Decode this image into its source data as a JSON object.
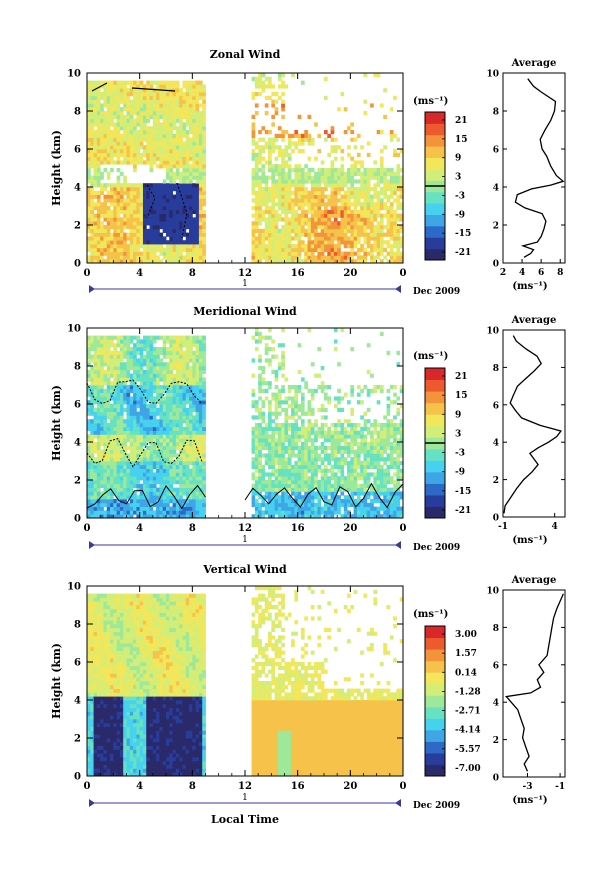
{
  "chart_data": [
    {
      "type": "heatmap",
      "title": "Zonal Wind",
      "xlabel": "",
      "ylabel": "Height (km)",
      "x_ticks": [
        "0",
        "4",
        "8",
        "12",
        "16",
        "20",
        "0"
      ],
      "y_ticks": [
        "0",
        "2",
        "4",
        "6",
        "8",
        "10"
      ],
      "xlim": [
        0,
        24
      ],
      "ylim": [
        0,
        10
      ],
      "date_axis": {
        "label": "1",
        "suffix": "Dec 2009"
      },
      "data_gap_hours": [
        9,
        12.5
      ],
      "colorbar": {
        "unit": "(ms⁻¹)",
        "ticks": [
          "21",
          "15",
          "9",
          "3",
          "-3",
          "-9",
          "-15",
          "-21"
        ],
        "range": [
          -24,
          24
        ],
        "marker": 0
      },
      "contour_level": 0,
      "profile": {
        "title": "Average",
        "xlabel": "(ms⁻¹)",
        "x_ticks": [
          "2",
          "4",
          "6",
          "8"
        ],
        "xlim": [
          2,
          8.5
        ],
        "y_ticks": [
          "0",
          "2",
          "4",
          "6",
          "8",
          "10"
        ],
        "ylim": [
          0,
          10
        ],
        "points": [
          [
            4.2,
            0.3
          ],
          [
            4.9,
            0.5
          ],
          [
            5.2,
            0.7
          ],
          [
            4.1,
            0.9
          ],
          [
            5.6,
            1.1
          ],
          [
            6.0,
            1.4
          ],
          [
            6.3,
            1.8
          ],
          [
            6.5,
            2.2
          ],
          [
            6.1,
            2.6
          ],
          [
            4.3,
            2.9
          ],
          [
            3.3,
            3.2
          ],
          [
            3.5,
            3.6
          ],
          [
            5.0,
            3.9
          ],
          [
            7.0,
            4.1
          ],
          [
            8.3,
            4.3
          ],
          [
            7.6,
            4.6
          ],
          [
            7.0,
            5.1
          ],
          [
            6.6,
            5.6
          ],
          [
            6.1,
            6.0
          ],
          [
            5.9,
            6.5
          ],
          [
            6.4,
            7.0
          ],
          [
            7.0,
            7.5
          ],
          [
            7.4,
            8.0
          ],
          [
            7.5,
            8.5
          ],
          [
            6.0,
            9.0
          ],
          [
            5.2,
            9.3
          ],
          [
            4.6,
            9.7
          ]
        ]
      }
    },
    {
      "type": "heatmap",
      "title": "Meridional Wind",
      "xlabel": "",
      "ylabel": "Height (km)",
      "x_ticks": [
        "0",
        "4",
        "8",
        "12",
        "16",
        "20",
        "0"
      ],
      "y_ticks": [
        "0",
        "2",
        "4",
        "6",
        "8",
        "10"
      ],
      "xlim": [
        0,
        24
      ],
      "ylim": [
        0,
        10
      ],
      "date_axis": {
        "label": "1",
        "suffix": "Dec 2009"
      },
      "data_gap_hours": [
        9,
        12.5
      ],
      "colorbar": {
        "unit": "(ms⁻¹)",
        "ticks": [
          "21",
          "15",
          "9",
          "3",
          "-3",
          "-9",
          "-15",
          "-21"
        ],
        "range": [
          -24,
          24
        ],
        "marker": 0
      },
      "contour_level": 0,
      "profile": {
        "title": "Average",
        "xlabel": "(ms⁻¹)",
        "x_ticks": [
          "-1",
          "4"
        ],
        "xlim": [
          -1,
          5
        ],
        "y_ticks": [
          "0",
          "2",
          "4",
          "6",
          "8",
          "10"
        ],
        "ylim": [
          0,
          10
        ],
        "points": [
          [
            -0.9,
            0.2
          ],
          [
            -0.8,
            0.6
          ],
          [
            -0.3,
            1.0
          ],
          [
            0.3,
            1.5
          ],
          [
            1.0,
            2.0
          ],
          [
            1.8,
            2.4
          ],
          [
            2.4,
            2.8
          ],
          [
            2.0,
            3.1
          ],
          [
            1.6,
            3.4
          ],
          [
            2.4,
            3.7
          ],
          [
            3.4,
            4.0
          ],
          [
            4.2,
            4.3
          ],
          [
            4.6,
            4.6
          ],
          [
            2.6,
            4.9
          ],
          [
            0.8,
            5.3
          ],
          [
            0.2,
            5.7
          ],
          [
            -0.3,
            6.1
          ],
          [
            0.0,
            6.5
          ],
          [
            0.4,
            7.0
          ],
          [
            1.2,
            7.4
          ],
          [
            2.0,
            7.8
          ],
          [
            2.7,
            8.2
          ],
          [
            2.3,
            8.6
          ],
          [
            1.2,
            9.0
          ],
          [
            0.3,
            9.4
          ],
          [
            0.0,
            9.7
          ]
        ]
      }
    },
    {
      "type": "heatmap",
      "title": "Vertical Wind",
      "xlabel": "Local Time",
      "ylabel": "Height (km)",
      "x_ticks": [
        "0",
        "4",
        "8",
        "12",
        "16",
        "20",
        "0"
      ],
      "y_ticks": [
        "0",
        "2",
        "4",
        "6",
        "8",
        "10"
      ],
      "xlim": [
        0,
        24
      ],
      "ylim": [
        0,
        10
      ],
      "date_axis": {
        "label": "1",
        "suffix": "Dec 2009"
      },
      "data_gap_hours": [
        9,
        12.5
      ],
      "colorbar": {
        "unit": "(ms⁻¹)",
        "ticks": [
          "3.00",
          "1.57",
          "0.14",
          "-1.28",
          "-2.71",
          "-4.14",
          "-5.57",
          "-7.00"
        ],
        "range": [
          -7.7,
          3.7
        ]
      },
      "profile": {
        "title": "Average",
        "xlabel": "(ms⁻¹)",
        "x_ticks": [
          "-3",
          "-1"
        ],
        "xlim": [
          -4.5,
          -0.7
        ],
        "y_ticks": [
          "0",
          "2",
          "4",
          "6",
          "8",
          "10"
        ],
        "ylim": [
          0,
          10
        ],
        "points": [
          [
            -3.0,
            0.3
          ],
          [
            -3.2,
            0.7
          ],
          [
            -2.9,
            1.1
          ],
          [
            -3.1,
            1.6
          ],
          [
            -3.3,
            2.1
          ],
          [
            -3.2,
            2.6
          ],
          [
            -3.4,
            3.1
          ],
          [
            -3.6,
            3.6
          ],
          [
            -4.0,
            4.0
          ],
          [
            -4.3,
            4.3
          ],
          [
            -2.8,
            4.5
          ],
          [
            -2.2,
            4.8
          ],
          [
            -2.4,
            5.2
          ],
          [
            -2.0,
            5.6
          ],
          [
            -2.3,
            6.0
          ],
          [
            -1.8,
            6.5
          ],
          [
            -1.7,
            7.0
          ],
          [
            -1.6,
            7.5
          ],
          [
            -1.5,
            8.0
          ],
          [
            -1.4,
            8.5
          ],
          [
            -1.2,
            9.0
          ],
          [
            -1.0,
            9.4
          ],
          [
            -0.8,
            9.8
          ]
        ]
      }
    }
  ],
  "colors": {
    "palette": [
      "#2a2a6a",
      "#283c9c",
      "#2d6ac8",
      "#3ea6e6",
      "#46d2ee",
      "#66e2c2",
      "#9ee89a",
      "#d2ee78",
      "#f2e65a",
      "#f6c24a",
      "#f4943a",
      "#ec5a2e",
      "#d8282a"
    ]
  }
}
